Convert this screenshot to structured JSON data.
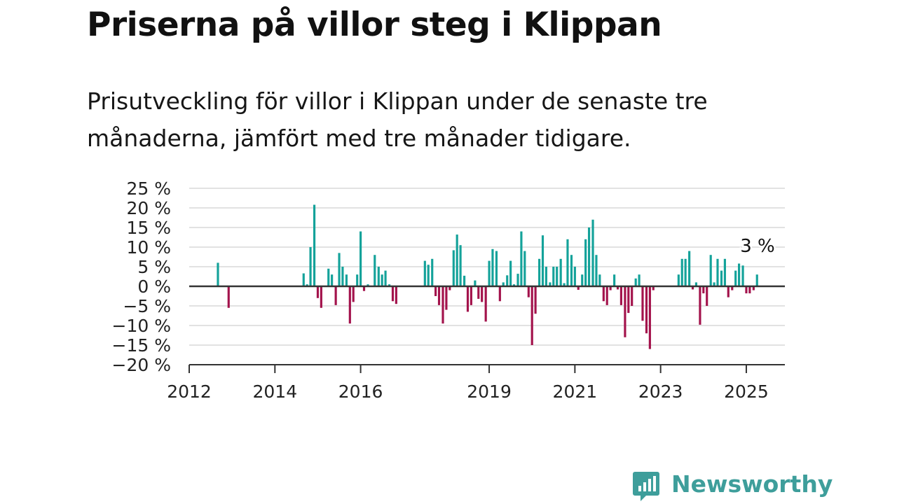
{
  "header": {
    "title": "Priserna på villor steg i Klippan",
    "subtitle": "Prisutveckling för villor i Klippan under de senaste tre månaderna, jämfört med tre månader tidigare."
  },
  "brand": {
    "name": "Newsworthy",
    "color": "#3e9e9b"
  },
  "colors": {
    "positive": "#14a29a",
    "negative": "#a3134c",
    "grid": "#d9d9d9",
    "axis": "#333333"
  },
  "chart_data": {
    "type": "bar",
    "y_tick_labels": [
      "25 %",
      "20 %",
      "15 %",
      "10 %",
      "5 %",
      "0 %",
      "−5 %",
      "−10 %",
      "−15 %",
      "−20 %"
    ],
    "y_ticks": [
      25,
      20,
      15,
      10,
      5,
      0,
      -5,
      -10,
      -15,
      -20
    ],
    "ylim": [
      -20,
      25
    ],
    "x_tick_labels": [
      "2012",
      "2014",
      "2016",
      "2019",
      "2021",
      "2023",
      "2025"
    ],
    "x_ticks": [
      2012,
      2014,
      2016,
      2019,
      2021,
      2023,
      2025
    ],
    "xlim": [
      2012,
      2025.9
    ],
    "grid": true,
    "last_value_label": "3 %",
    "series": [
      {
        "values": [
          [
            2012.67,
            6
          ],
          [
            2012.92,
            -5.5
          ],
          [
            2014.67,
            3.3
          ],
          [
            2014.75,
            0.5
          ],
          [
            2014.83,
            10
          ],
          [
            2014.92,
            20.8
          ],
          [
            2015.0,
            -3
          ],
          [
            2015.08,
            -5.5
          ],
          [
            2015.25,
            4.5
          ],
          [
            2015.33,
            3
          ],
          [
            2015.42,
            -4.8
          ],
          [
            2015.5,
            8.5
          ],
          [
            2015.58,
            5
          ],
          [
            2015.67,
            3
          ],
          [
            2015.75,
            -9.5
          ],
          [
            2015.83,
            -4
          ],
          [
            2015.92,
            3
          ],
          [
            2016.0,
            14
          ],
          [
            2016.08,
            -1.2
          ],
          [
            2016.17,
            0.5
          ],
          [
            2016.33,
            8
          ],
          [
            2016.42,
            5
          ],
          [
            2016.5,
            3
          ],
          [
            2016.58,
            4
          ],
          [
            2016.67,
            0.5
          ],
          [
            2016.75,
            -3.8
          ],
          [
            2016.83,
            -4.5
          ],
          [
            2017.5,
            6.5
          ],
          [
            2017.58,
            5.5
          ],
          [
            2017.67,
            7
          ],
          [
            2017.75,
            -2.5
          ],
          [
            2017.83,
            -4.8
          ],
          [
            2017.92,
            -9.5
          ],
          [
            2018.0,
            -6
          ],
          [
            2018.08,
            -1
          ],
          [
            2018.17,
            9.2
          ],
          [
            2018.25,
            13.2
          ],
          [
            2018.33,
            10.5
          ],
          [
            2018.42,
            2.7
          ],
          [
            2018.5,
            -6.5
          ],
          [
            2018.58,
            -4.8
          ],
          [
            2018.67,
            1.5
          ],
          [
            2018.75,
            -3.2
          ],
          [
            2018.83,
            -4
          ],
          [
            2018.92,
            -9
          ],
          [
            2019.0,
            6.5
          ],
          [
            2019.08,
            9.5
          ],
          [
            2019.17,
            9
          ],
          [
            2019.25,
            -3.8
          ],
          [
            2019.33,
            1
          ],
          [
            2019.42,
            2.8
          ],
          [
            2019.5,
            6.5
          ],
          [
            2019.58,
            0.5
          ],
          [
            2019.67,
            3.2
          ],
          [
            2019.75,
            14
          ],
          [
            2019.83,
            9
          ],
          [
            2019.92,
            -2.8
          ],
          [
            2020.0,
            -15
          ],
          [
            2020.08,
            -7
          ],
          [
            2020.17,
            7
          ],
          [
            2020.25,
            13
          ],
          [
            2020.33,
            5
          ],
          [
            2020.42,
            1
          ],
          [
            2020.5,
            5
          ],
          [
            2020.58,
            5
          ],
          [
            2020.67,
            7
          ],
          [
            2020.75,
            0.8
          ],
          [
            2020.83,
            12
          ],
          [
            2020.92,
            8
          ],
          [
            2021.0,
            5
          ],
          [
            2021.08,
            -0.9
          ],
          [
            2021.17,
            3
          ],
          [
            2021.25,
            12
          ],
          [
            2021.33,
            15
          ],
          [
            2021.42,
            17
          ],
          [
            2021.5,
            8
          ],
          [
            2021.58,
            3
          ],
          [
            2021.67,
            -3.8
          ],
          [
            2021.75,
            -4.8
          ],
          [
            2021.83,
            -1
          ],
          [
            2021.92,
            3
          ],
          [
            2022.0,
            -0.8
          ],
          [
            2022.08,
            -4.8
          ],
          [
            2022.17,
            -13
          ],
          [
            2022.25,
            -6.8
          ],
          [
            2022.33,
            -5
          ],
          [
            2022.42,
            2
          ],
          [
            2022.5,
            3
          ],
          [
            2022.58,
            -8.8
          ],
          [
            2022.67,
            -12
          ],
          [
            2022.75,
            -16
          ],
          [
            2022.83,
            -1
          ],
          [
            2023.42,
            3
          ],
          [
            2023.5,
            7
          ],
          [
            2023.58,
            7
          ],
          [
            2023.67,
            9
          ],
          [
            2023.75,
            -0.8
          ],
          [
            2023.83,
            1
          ],
          [
            2023.92,
            -9.8
          ],
          [
            2024.0,
            -1.8
          ],
          [
            2024.08,
            -5
          ],
          [
            2024.17,
            8
          ],
          [
            2024.25,
            1
          ],
          [
            2024.33,
            7
          ],
          [
            2024.42,
            4
          ],
          [
            2024.5,
            7
          ],
          [
            2024.58,
            -2.8
          ],
          [
            2024.67,
            -1
          ],
          [
            2024.75,
            4
          ],
          [
            2024.83,
            5.8
          ],
          [
            2024.92,
            5.3
          ],
          [
            2025.0,
            -1.8
          ],
          [
            2025.08,
            -1.8
          ],
          [
            2025.17,
            -1
          ],
          [
            2025.25,
            3
          ]
        ]
      }
    ]
  }
}
